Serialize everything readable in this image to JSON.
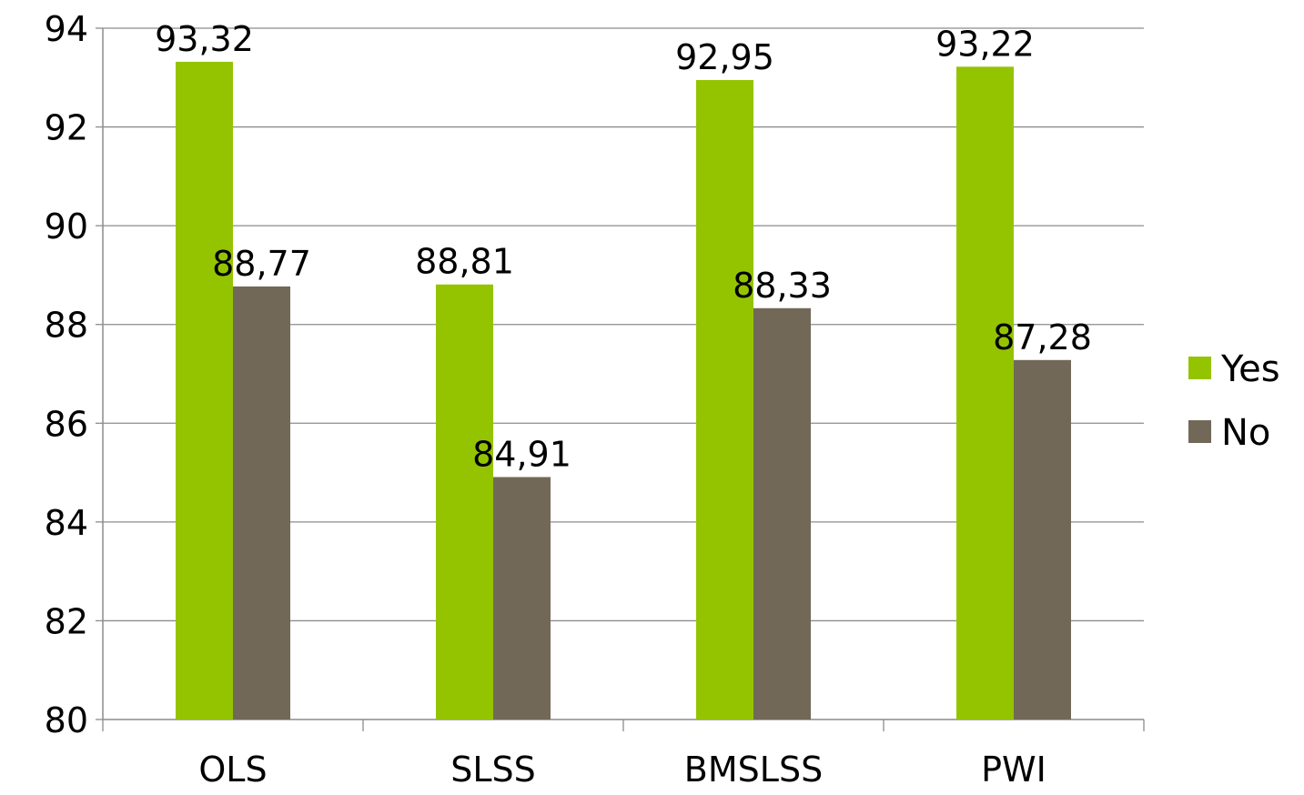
{
  "chart_data": {
    "type": "bar",
    "categories": [
      "OLS",
      "SLSS",
      "BMSLSS",
      "PWI"
    ],
    "series": [
      {
        "name": "Yes",
        "values": [
          93.32,
          88.81,
          92.95,
          93.22
        ],
        "labels": [
          "93,32",
          "88,81",
          "92,95",
          "93,22"
        ],
        "color": "#94c400"
      },
      {
        "name": "No",
        "values": [
          88.77,
          84.91,
          88.33,
          87.28
        ],
        "labels": [
          "88,77",
          "84,91",
          "88,33",
          "87,28"
        ],
        "color": "#726858"
      }
    ],
    "ylim": [
      80,
      94
    ],
    "yticks": [
      80,
      82,
      84,
      86,
      88,
      90,
      92,
      94
    ],
    "title": "",
    "xlabel": "",
    "ylabel": "",
    "grid": true,
    "legend": "right"
  }
}
